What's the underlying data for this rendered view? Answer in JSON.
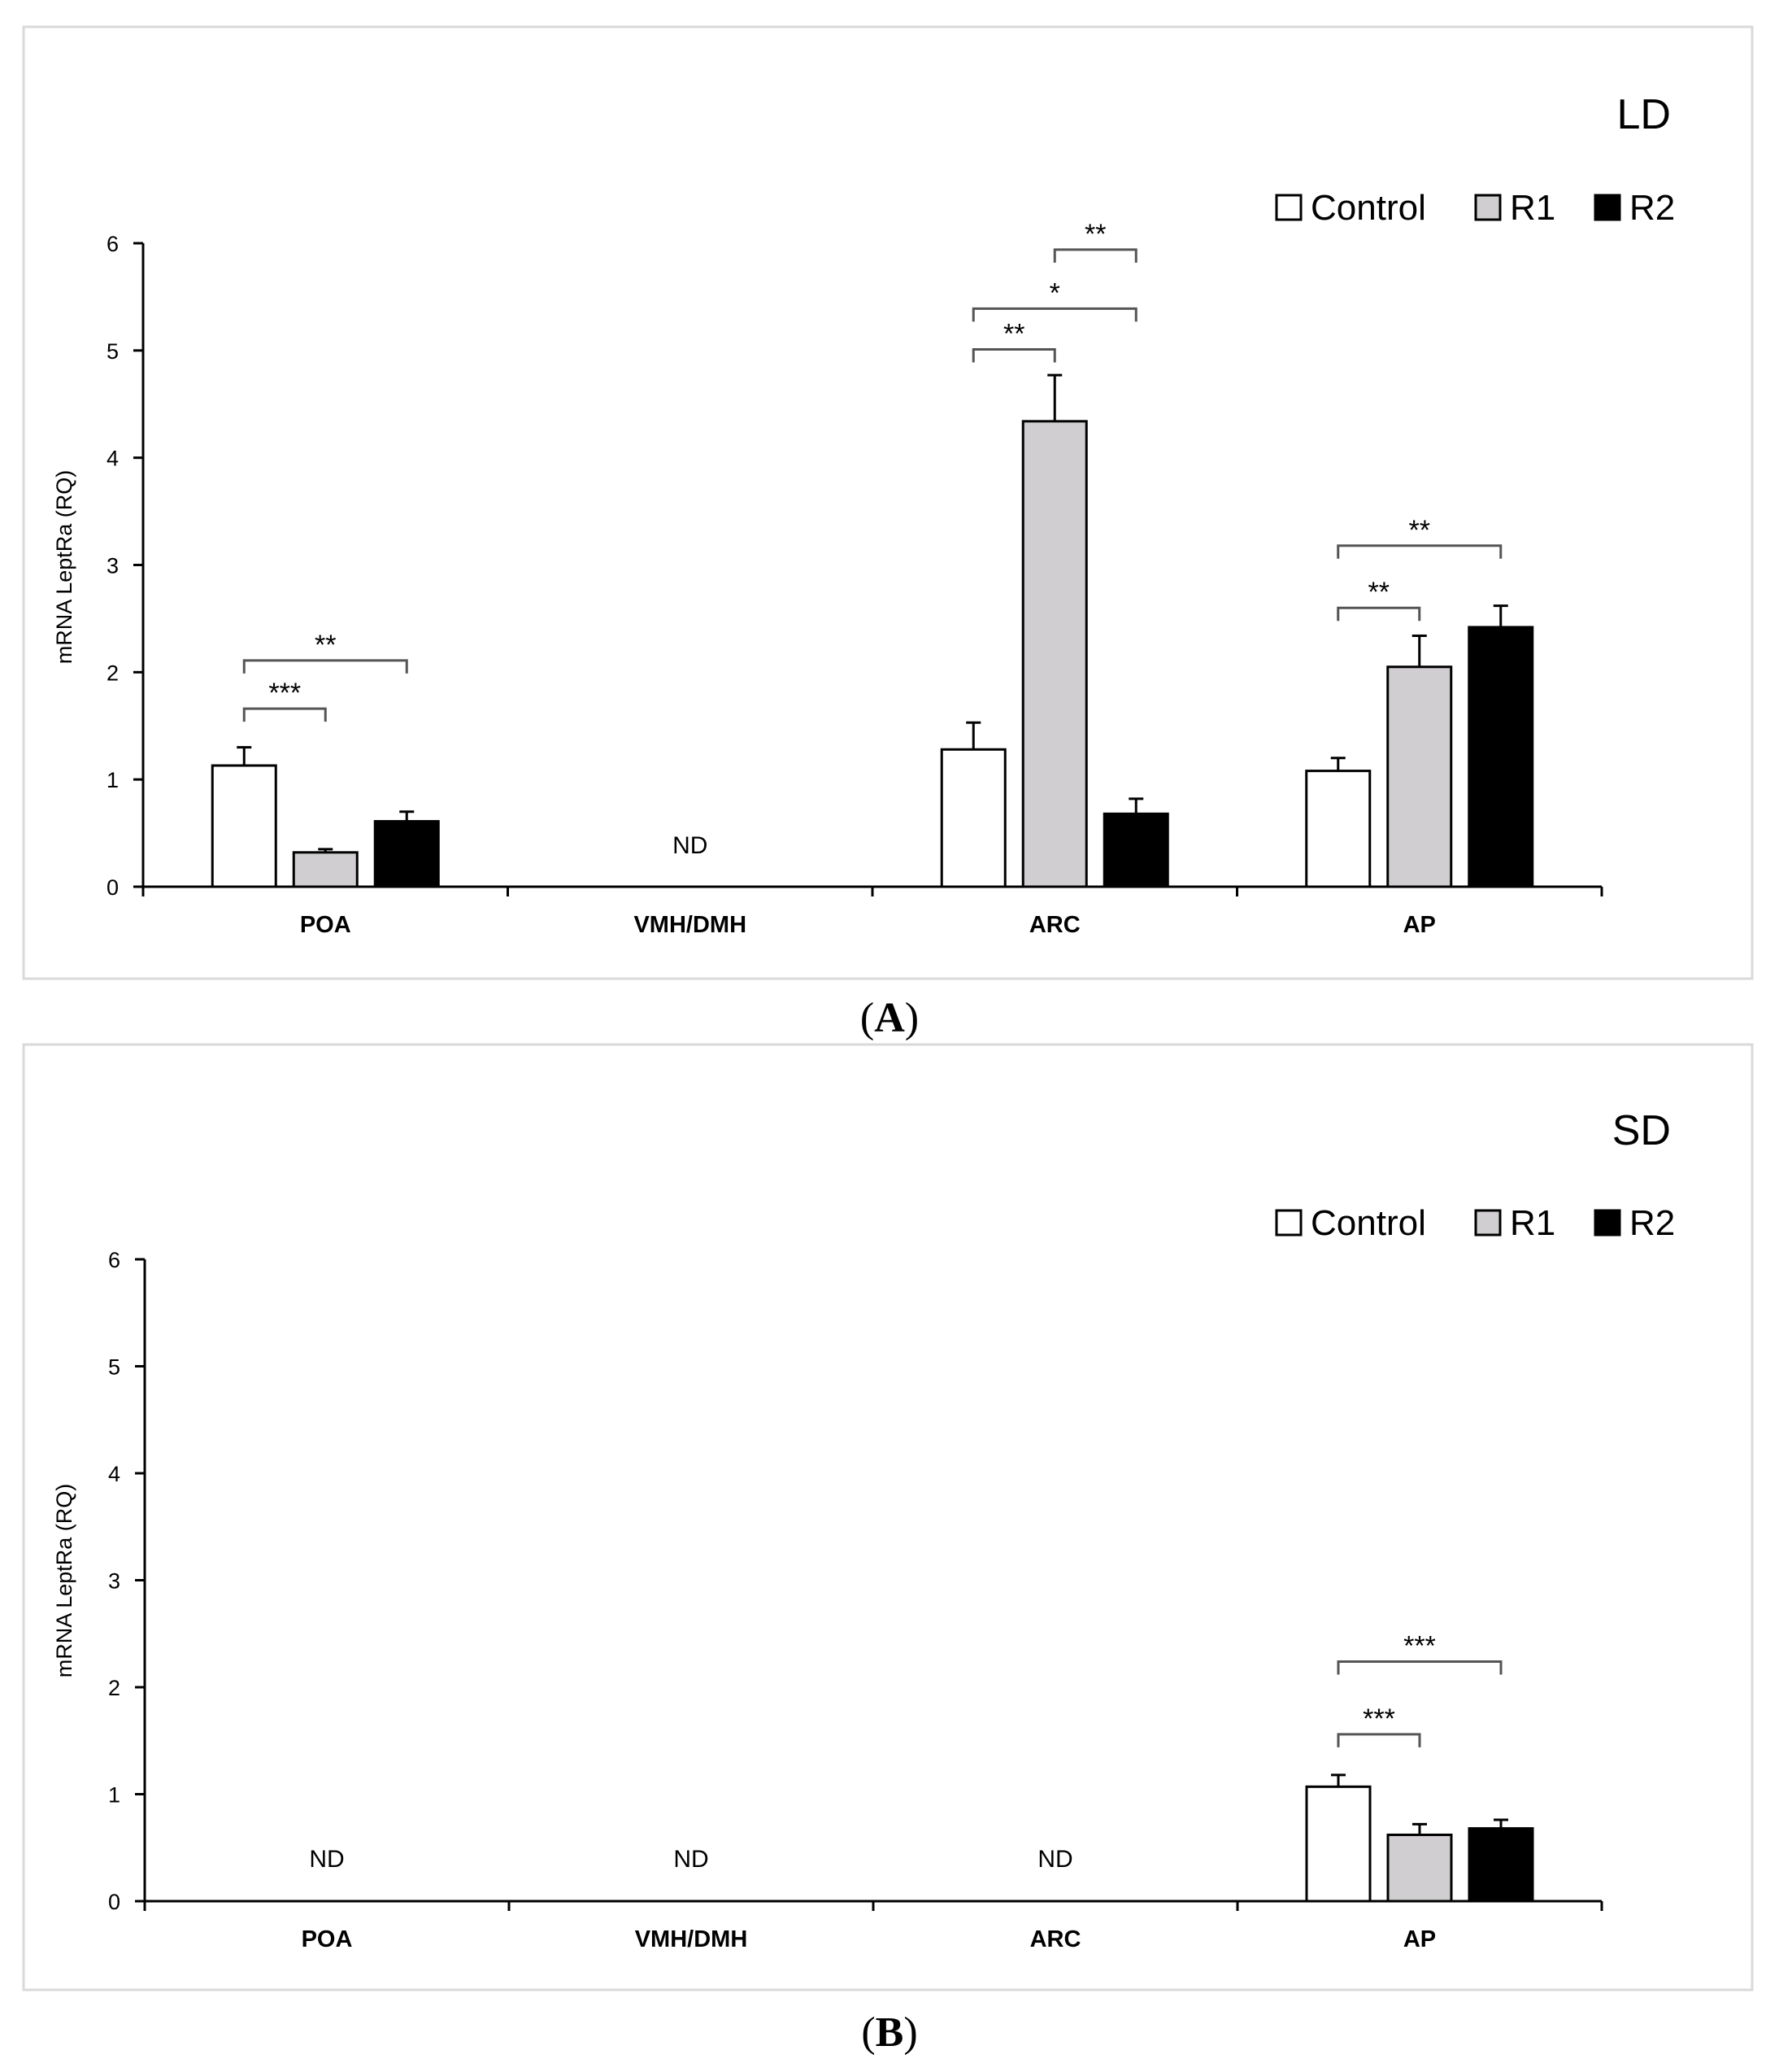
{
  "colors": {
    "control": "#ffffff",
    "r1": "#d0ced0",
    "r2": "#000000"
  },
  "chart_data": [
    {
      "type": "bar",
      "panel": "A",
      "caption_letter": "A",
      "title": "LD",
      "ylabel": "mRNA LeptRa (RQ)",
      "xlabel": "",
      "ylim": [
        0,
        6
      ],
      "yticks": [
        "0",
        "1",
        "2",
        "3",
        "4",
        "5",
        "6"
      ],
      "categories": [
        "POA",
        "VMH/DMH",
        "ARC",
        "AP"
      ],
      "legend": [
        "Control",
        "R1",
        "R2"
      ],
      "series": [
        {
          "name": "Control",
          "values": [
            1.13,
            null,
            1.28,
            1.08
          ],
          "errors": [
            0.17,
            null,
            0.25,
            0.12
          ]
        },
        {
          "name": "R1",
          "values": [
            0.32,
            null,
            4.34,
            2.05
          ],
          "errors": [
            0.03,
            null,
            0.43,
            0.29
          ]
        },
        {
          "name": "R2",
          "values": [
            0.61,
            null,
            0.68,
            2.42
          ],
          "errors": [
            0.09,
            null,
            0.14,
            0.2
          ]
        }
      ],
      "nd_label": "ND",
      "nd_categories": [
        1
      ],
      "significance": [
        {
          "category": 0,
          "from": 0,
          "to": 1,
          "label": "***",
          "level": 1.66
        },
        {
          "category": 0,
          "from": 0,
          "to": 2,
          "label": "**",
          "level": 2.11
        },
        {
          "category": 2,
          "from": 0,
          "to": 1,
          "label": "**",
          "level": 5.01
        },
        {
          "category": 2,
          "from": 0,
          "to": 2,
          "label": "*",
          "level": 5.39
        },
        {
          "category": 2,
          "from": 1,
          "to": 2,
          "label": "**",
          "level": 5.94
        },
        {
          "category": 3,
          "from": 0,
          "to": 1,
          "label": "**",
          "level": 2.6
        },
        {
          "category": 3,
          "from": 0,
          "to": 2,
          "label": "**",
          "level": 3.18
        }
      ]
    },
    {
      "type": "bar",
      "panel": "B",
      "caption_letter": "B",
      "title": "SD",
      "ylabel": "mRNA LeptRa (RQ)",
      "xlabel": "",
      "ylim": [
        0,
        6
      ],
      "yticks": [
        "0",
        "1",
        "2",
        "3",
        "4",
        "5",
        "6"
      ],
      "categories": [
        "POA",
        "VMH/DMH",
        "ARC",
        "AP"
      ],
      "legend": [
        "Control",
        "R1",
        "R2"
      ],
      "series": [
        {
          "name": "Control",
          "values": [
            null,
            null,
            null,
            1.07
          ],
          "errors": [
            null,
            null,
            null,
            0.11
          ]
        },
        {
          "name": "R1",
          "values": [
            null,
            null,
            null,
            0.62
          ],
          "errors": [
            null,
            null,
            null,
            0.1
          ]
        },
        {
          "name": "R2",
          "values": [
            null,
            null,
            null,
            0.68
          ],
          "errors": [
            null,
            null,
            null,
            0.08
          ]
        }
      ],
      "nd_label": "ND",
      "nd_categories": [
        0,
        1,
        2
      ],
      "significance": [
        {
          "category": 3,
          "from": 0,
          "to": 1,
          "label": "***",
          "level": 1.56
        },
        {
          "category": 3,
          "from": 0,
          "to": 2,
          "label": "***",
          "level": 2.24
        }
      ]
    }
  ]
}
